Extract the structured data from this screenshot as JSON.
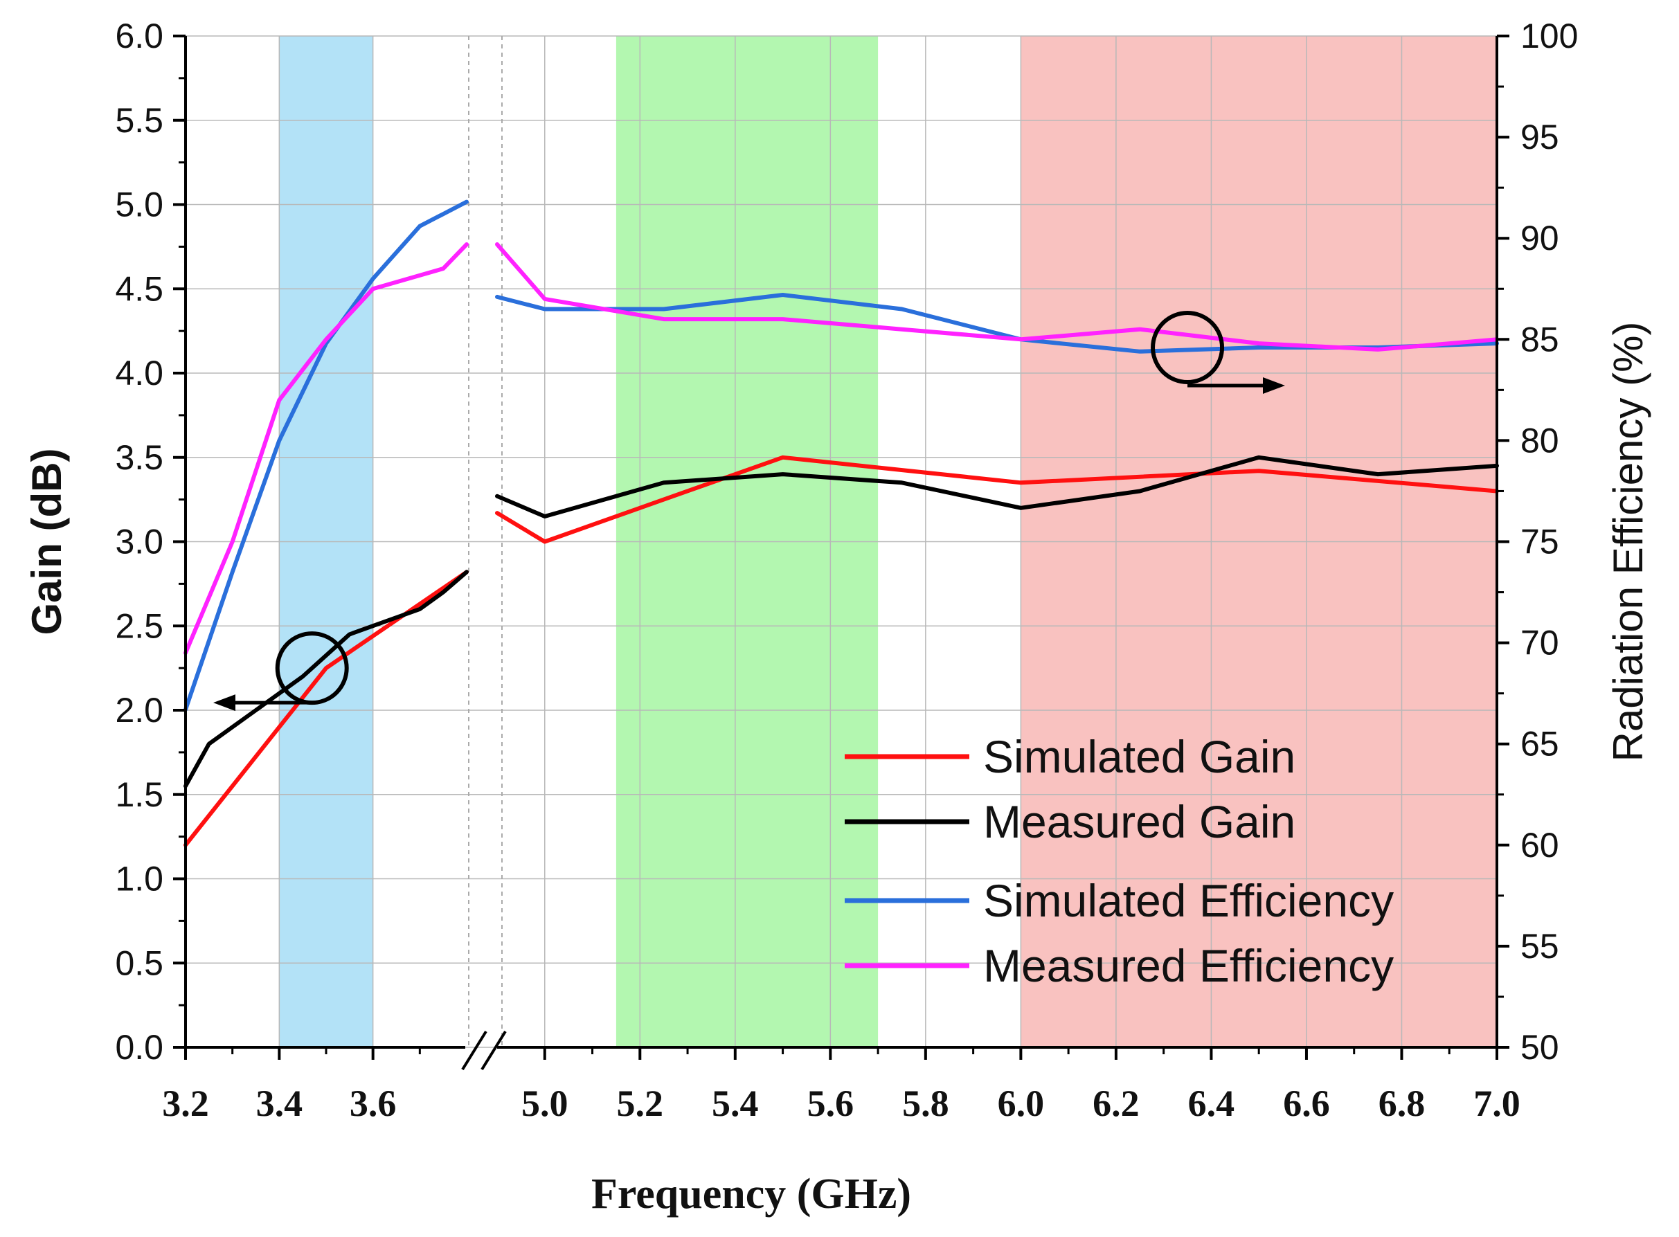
{
  "chart_data": {
    "type": "line",
    "xlabel": "Frequency (GHz)",
    "ylabel": "Gain (dB)",
    "y2label": "Radiation Efficiency (%)",
    "ylim": [
      0.0,
      6.0
    ],
    "y2lim": [
      50,
      100
    ],
    "yticks": [
      "0.0",
      "0.5",
      "1.0",
      "1.5",
      "2.0",
      "2.5",
      "3.0",
      "3.5",
      "4.0",
      "4.5",
      "5.0",
      "5.5",
      "6.0"
    ],
    "y2ticks": [
      "50",
      "55",
      "60",
      "65",
      "70",
      "75",
      "80",
      "85",
      "90",
      "95",
      "100"
    ],
    "x_segment_1": [
      3.2,
      3.8
    ],
    "x_segment_2": [
      4.9,
      7.0
    ],
    "xticks": [
      {
        "value": 3.2,
        "label": "3.2"
      },
      {
        "value": 3.4,
        "label": "3.4"
      },
      {
        "value": 3.6,
        "label": "3.6"
      },
      {
        "value": 5.0,
        "label": "5.0"
      },
      {
        "value": 5.2,
        "label": "5.2"
      },
      {
        "value": 5.4,
        "label": "5.4"
      },
      {
        "value": 5.6,
        "label": "5.6"
      },
      {
        "value": 5.8,
        "label": "5.8"
      },
      {
        "value": 6.0,
        "label": "6.0"
      },
      {
        "value": 6.2,
        "label": "6.2"
      },
      {
        "value": 6.4,
        "label": "6.4"
      },
      {
        "value": 6.6,
        "label": "6.6"
      },
      {
        "value": 6.8,
        "label": "6.8"
      },
      {
        "value": 7.0,
        "label": "7.0"
      }
    ],
    "bands": [
      {
        "from": 3.4,
        "to": 3.6,
        "color": "#b3e2f7"
      },
      {
        "from": 5.15,
        "to": 5.7,
        "color": "#b3f7b0"
      },
      {
        "from": 6.0,
        "to": 7.0,
        "color": "#f9c2c0"
      }
    ],
    "series": [
      {
        "name": "Simulated Gain",
        "color": "#ff1010",
        "axis": "left",
        "segment1": [
          [
            3.2,
            1.2
          ],
          [
            3.5,
            2.25
          ],
          [
            3.8,
            2.82
          ]
        ],
        "segment2": [
          [
            4.9,
            3.17
          ],
          [
            5.0,
            3.0
          ],
          [
            5.25,
            3.25
          ],
          [
            5.5,
            3.5
          ],
          [
            6.0,
            3.35
          ],
          [
            6.5,
            3.42
          ],
          [
            7.0,
            3.3
          ]
        ]
      },
      {
        "name": "Measured Gain",
        "color": "#000000",
        "axis": "left",
        "segment1": [
          [
            3.2,
            1.55
          ],
          [
            3.25,
            1.8
          ],
          [
            3.35,
            2.0
          ],
          [
            3.45,
            2.2
          ],
          [
            3.55,
            2.45
          ],
          [
            3.7,
            2.6
          ],
          [
            3.75,
            2.7
          ],
          [
            3.8,
            2.82
          ]
        ],
        "segment2": [
          [
            4.9,
            3.27
          ],
          [
            5.0,
            3.15
          ],
          [
            5.25,
            3.35
          ],
          [
            5.5,
            3.4
          ],
          [
            5.75,
            3.35
          ],
          [
            6.0,
            3.2
          ],
          [
            6.25,
            3.3
          ],
          [
            6.5,
            3.5
          ],
          [
            6.75,
            3.4
          ],
          [
            7.0,
            3.45
          ]
        ]
      },
      {
        "name": "Simulated Efficiency",
        "color": "#2a6fdb",
        "axis": "right",
        "segment1": [
          [
            3.2,
            66.7
          ],
          [
            3.3,
            73.5
          ],
          [
            3.4,
            80.0
          ],
          [
            3.5,
            84.8
          ],
          [
            3.6,
            88.0
          ],
          [
            3.7,
            90.6
          ],
          [
            3.8,
            91.8
          ]
        ],
        "segment2": [
          [
            4.9,
            87.1
          ],
          [
            5.0,
            86.5
          ],
          [
            5.25,
            86.5
          ],
          [
            5.5,
            87.2
          ],
          [
            5.75,
            86.5
          ],
          [
            6.0,
            85.0
          ],
          [
            6.25,
            84.4
          ],
          [
            6.5,
            84.6
          ],
          [
            6.75,
            84.6
          ],
          [
            7.0,
            84.8
          ]
        ]
      },
      {
        "name": "Measured Efficiency",
        "color": "#ff22ff",
        "axis": "right",
        "segment1": [
          [
            3.2,
            69.5
          ],
          [
            3.3,
            75.0
          ],
          [
            3.4,
            82.0
          ],
          [
            3.5,
            85.0
          ],
          [
            3.6,
            87.5
          ],
          [
            3.75,
            88.5
          ],
          [
            3.8,
            89.7
          ]
        ],
        "segment2": [
          [
            4.9,
            89.7
          ],
          [
            5.0,
            87.0
          ],
          [
            5.25,
            86.0
          ],
          [
            5.5,
            86.0
          ],
          [
            5.75,
            85.5
          ],
          [
            6.0,
            85.0
          ],
          [
            6.25,
            85.5
          ],
          [
            6.5,
            84.8
          ],
          [
            6.75,
            84.5
          ],
          [
            7.0,
            85.0
          ]
        ]
      }
    ],
    "legend": {
      "position": "bottom-right",
      "entries": [
        "Simulated Gain",
        "Measured Gain",
        "Simulated Efficiency",
        "Measured Efficiency"
      ]
    },
    "annotations": [
      {
        "type": "circle-arrow",
        "points_to": "left axis",
        "at": [
          3.47,
          2.25
        ]
      },
      {
        "type": "circle-arrow",
        "points_to": "right axis",
        "at": [
          6.35,
          84.6
        ]
      }
    ]
  }
}
